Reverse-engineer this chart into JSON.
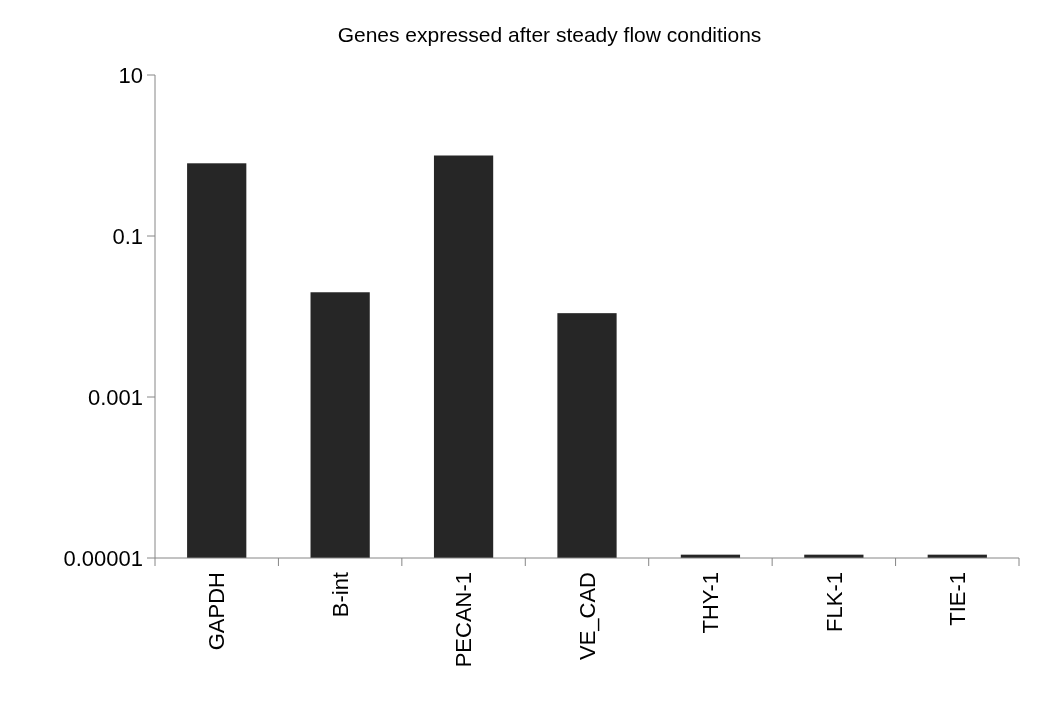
{
  "chart_data": {
    "type": "bar",
    "title": "Genes expressed after steady flow conditions",
    "categories": [
      "GAPDH",
      "B-int",
      "PECAN-1",
      "VE_CAD",
      "THY-1",
      "FLK-1",
      "TIE-1"
    ],
    "values": [
      0.8,
      0.02,
      1.0,
      0.011,
      1.1e-05,
      1.1e-05,
      1.1e-05
    ],
    "color": "#262626",
    "log": "y",
    "ylim": [
      1e-05,
      10
    ],
    "yticks": [
      {
        "value": 1e-05,
        "label": "0.00001"
      },
      {
        "value": 0.001,
        "label": "0.001"
      },
      {
        "value": 0.1,
        "label": "0.1"
      },
      10
    ],
    "grid": false
  }
}
